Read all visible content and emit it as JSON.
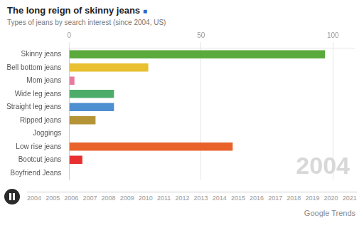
{
  "chart_data": [
    {
      "type": "bar",
      "title": "The long reign of skinny jeans",
      "subtitle": "Types of jeans by search interest (since 2004, US)",
      "categories": [
        "Skinny jeans",
        "Bell bottom jeans",
        "Mom jeans",
        "Wide leg jeans",
        "Straight leg jeans",
        "Ripped jeans",
        "Joggings",
        "Low rise jeans",
        "Bootcut jeans",
        "Boyfriend Jeans"
      ],
      "values": [
        97,
        30,
        2,
        17,
        17,
        10,
        0,
        62,
        5,
        0
      ],
      "colors": [
        "#5aaa3c",
        "#e8c030",
        "#e87aa0",
        "#4cad6a",
        "#4d8fd0",
        "#b59438",
        "#ffffff",
        "#e8622a",
        "#e83030",
        "#ffffff"
      ],
      "orientation": "horizontal",
      "xlim": [
        0,
        108
      ],
      "xticks": [
        0,
        50,
        100
      ],
      "grid": true,
      "annotations": [
        "2004",
        "■",
        "Google Trends"
      ]
    },
    {
      "type": "timeline",
      "categories": [
        "2004",
        "2005",
        "2006",
        "2007",
        "2008",
        "2009",
        "2010",
        "2011",
        "2012",
        "2013",
        "2014",
        "2015",
        "2016",
        "2017",
        "2018",
        "2019",
        "2020",
        "2021"
      ]
    }
  ]
}
